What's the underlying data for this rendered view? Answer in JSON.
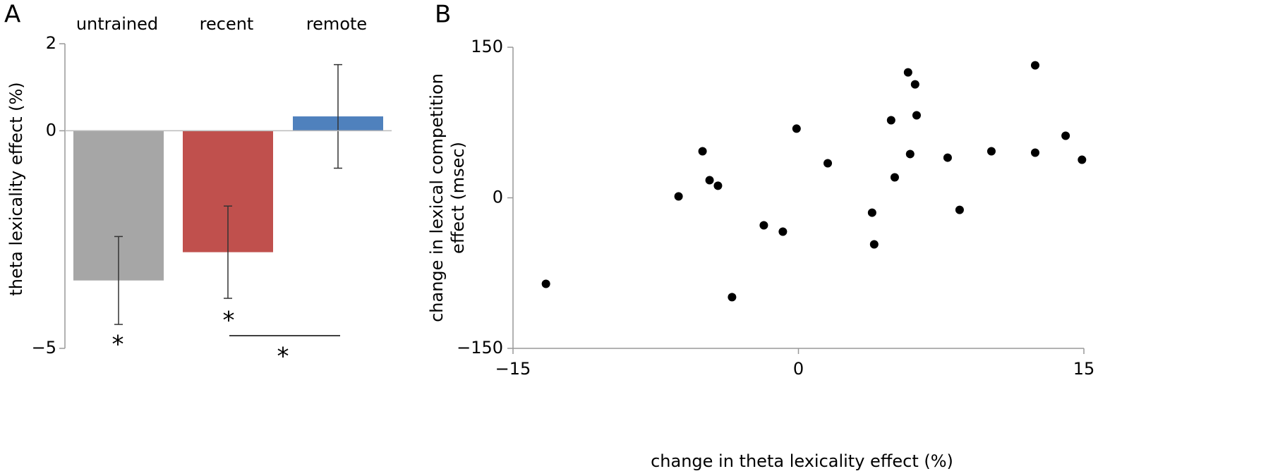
{
  "chart_data": [
    {
      "type": "bar",
      "panel_label": "A",
      "ylabel": "theta lexicality effect (%)",
      "categories": [
        "untrained",
        "recent",
        "remote"
      ],
      "values": [
        -3.44,
        -2.79,
        0.33
      ],
      "errors": [
        1.01,
        1.06,
        1.19
      ],
      "colors": [
        "#a6a6a6",
        "#c0504d",
        "#4f81bd"
      ],
      "ylim": [
        -5,
        2
      ],
      "yticks": [
        {
          "value": -5,
          "label": "−5"
        },
        0,
        2
      ],
      "annotations": [
        "*",
        "*",
        "*"
      ]
    },
    {
      "type": "scatter",
      "panel_label": "B",
      "xlabel": "change in theta lexicality effect (%)",
      "ylabel": [
        "change in lexical competition",
        "effect (msec)"
      ],
      "color": "#000000",
      "x": [
        -13.27,
        -6.3,
        -5.04,
        -4.67,
        -4.23,
        -3.49,
        -1.82,
        -0.82,
        -0.1,
        1.54,
        3.87,
        3.98,
        4.87,
        5.06,
        5.76,
        5.87,
        6.13,
        6.21,
        7.84,
        8.47,
        10.14,
        12.44,
        12.44,
        14.04,
        14.9
      ],
      "y": [
        -85.7,
        1.4,
        46.4,
        17.6,
        12,
        -99,
        -27.4,
        -33.7,
        68.9,
        34.4,
        -14.8,
        -46.4,
        77.3,
        20.4,
        125,
        43.6,
        113,
        82.2,
        40,
        -12,
        46.4,
        132,
        45,
        61.8,
        37.9
      ],
      "xlim": [
        -15,
        15
      ],
      "xticks": [
        {
          "value": -15,
          "label": "−15"
        },
        0,
        15
      ],
      "ylim": [
        -150,
        150
      ],
      "yticks": [
        {
          "value": -150,
          "label": "−150"
        },
        0,
        150
      ]
    }
  ]
}
